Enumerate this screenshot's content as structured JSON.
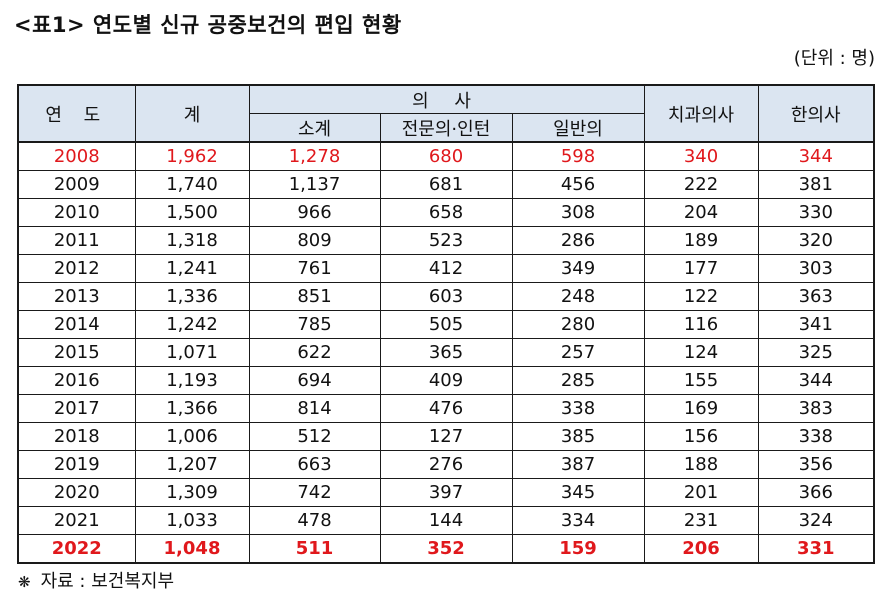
{
  "title": "<표1> 연도별 신규 공중보건의 편입 현황",
  "unit": "(단위 : 명)",
  "table": {
    "headers": {
      "year": "연 도",
      "total": "계",
      "doctor": "의 사",
      "doctor_sub": [
        "소계",
        "전문의·인턴",
        "일반의"
      ],
      "dentist": "치과의사",
      "oriental": "한의사"
    },
    "rows": [
      [
        "2008",
        "1,962",
        "1,278",
        "680",
        "598",
        "340",
        "344"
      ],
      [
        "2009",
        "1,740",
        "1,137",
        "681",
        "456",
        "222",
        "381"
      ],
      [
        "2010",
        "1,500",
        "966",
        "658",
        "308",
        "204",
        "330"
      ],
      [
        "2011",
        "1,318",
        "809",
        "523",
        "286",
        "189",
        "320"
      ],
      [
        "2012",
        "1,241",
        "761",
        "412",
        "349",
        "177",
        "303"
      ],
      [
        "2013",
        "1,336",
        "851",
        "603",
        "248",
        "122",
        "363"
      ],
      [
        "2014",
        "1,242",
        "785",
        "505",
        "280",
        "116",
        "341"
      ],
      [
        "2015",
        "1,071",
        "622",
        "365",
        "257",
        "124",
        "325"
      ],
      [
        "2016",
        "1,193",
        "694",
        "409",
        "285",
        "155",
        "344"
      ],
      [
        "2017",
        "1,366",
        "814",
        "476",
        "338",
        "169",
        "383"
      ],
      [
        "2018",
        "1,006",
        "512",
        "127",
        "385",
        "156",
        "338"
      ],
      [
        "2019",
        "1,207",
        "663",
        "276",
        "387",
        "188",
        "356"
      ],
      [
        "2020",
        "1,309",
        "742",
        "397",
        "345",
        "201",
        "366"
      ],
      [
        "2021",
        "1,033",
        "478",
        "144",
        "334",
        "231",
        "324"
      ],
      [
        "2022",
        "1,048",
        "511",
        "352",
        "159",
        "206",
        "331"
      ]
    ]
  },
  "source": {
    "mark": "❋",
    "text": "자료 : 보건복지부"
  },
  "colors": {
    "header_bg": "#dbe5f1",
    "highlight_text": "#e0181c",
    "border": "#1a1a1a"
  }
}
